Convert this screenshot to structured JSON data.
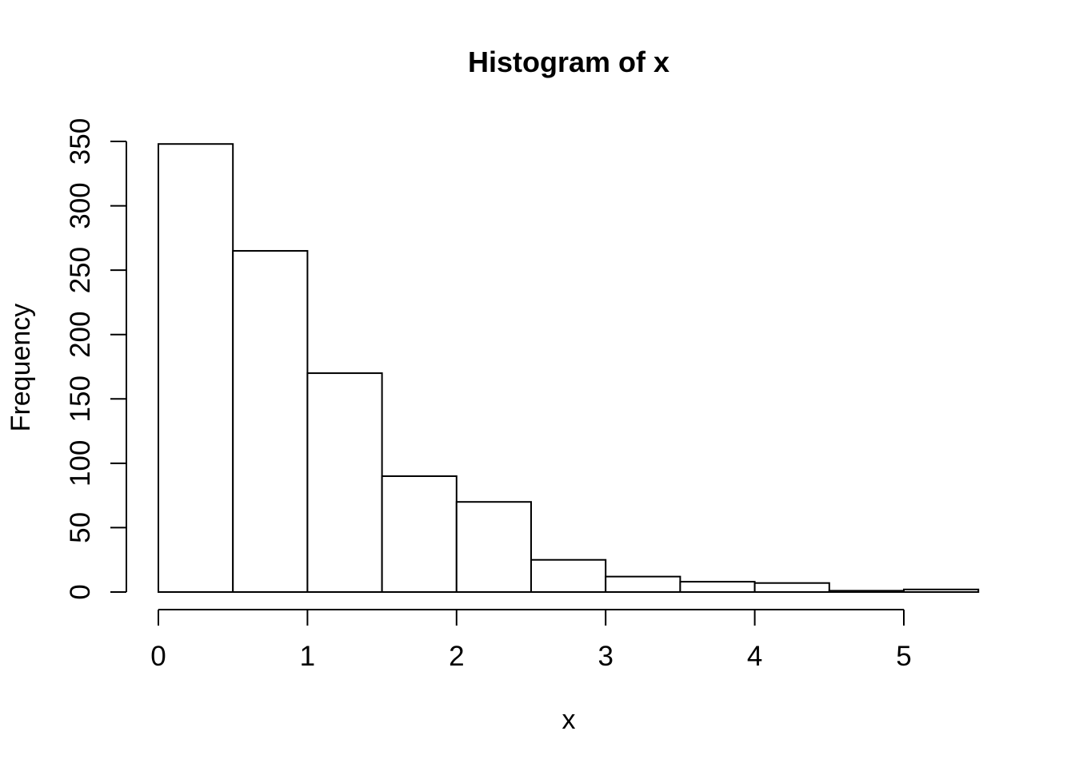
{
  "figure": {
    "background_color": "#ffffff",
    "foreground_color": "#000000"
  },
  "chart_data": {
    "type": "bar",
    "subtype": "histogram",
    "title": "Histogram of x",
    "xlabel": "x",
    "ylabel": "Frequency",
    "bin_width": 0.5,
    "bin_edges": [
      0,
      0.5,
      1,
      1.5,
      2,
      2.5,
      3,
      3.5,
      4,
      4.5,
      5,
      5.5
    ],
    "counts": [
      348,
      265,
      170,
      90,
      70,
      25,
      12,
      8,
      7,
      1,
      2
    ],
    "x_ticks": [
      0,
      1,
      2,
      3,
      4,
      5
    ],
    "y_ticks": [
      0,
      50,
      100,
      150,
      200,
      250,
      300,
      350
    ],
    "xlim": [
      0,
      5.5
    ],
    "ylim": [
      0,
      350
    ],
    "grid": false,
    "legend_position": "none",
    "bar_fill_color": "#ffffff",
    "bar_border_color": "#000000",
    "axis_color": "#000000"
  }
}
